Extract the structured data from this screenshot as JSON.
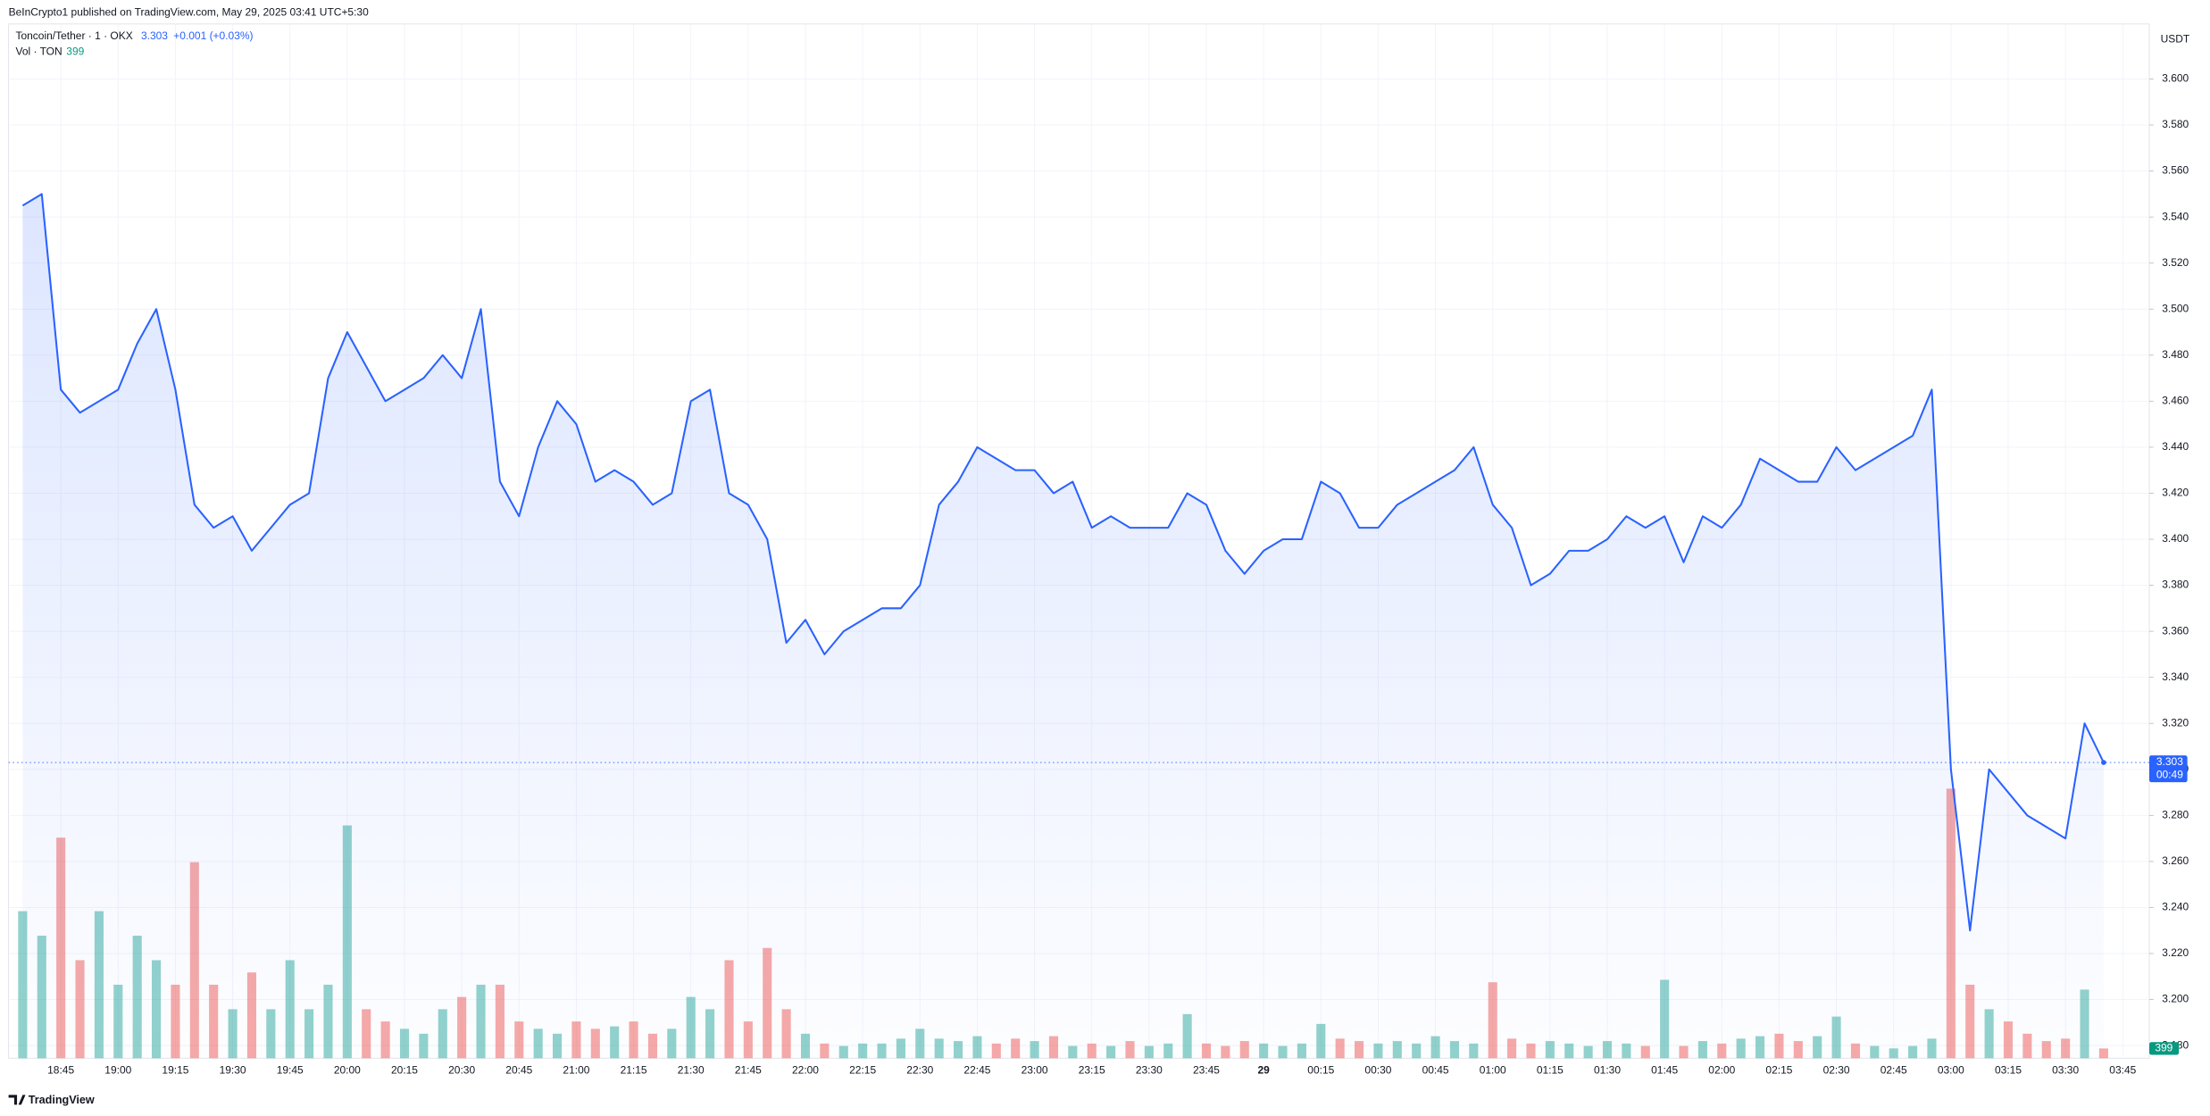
{
  "header": {
    "text": "BeInCrypto1 published on TradingView.com, May 29, 2025 03:41 UTC+5:30"
  },
  "legend": {
    "change": "+0.001 (+0.03%)"
  },
  "footer": {
    "brand": "TradingView"
  },
  "chart_data": {
    "type": "area",
    "y_axis_label": "USDT",
    "countdown": "00:49",
    "grid": true,
    "categories": [
      null,
      null,
      "18:45",
      null,
      null,
      "19:00",
      null,
      null,
      "19:15",
      null,
      null,
      "19:30",
      null,
      null,
      "19:45",
      null,
      null,
      "20:00",
      null,
      null,
      "20:15",
      null,
      null,
      "20:30",
      null,
      null,
      "20:45",
      null,
      null,
      "21:00",
      null,
      null,
      "21:15",
      null,
      null,
      "21:30",
      null,
      null,
      "21:45",
      null,
      null,
      "22:00",
      null,
      null,
      "22:15",
      null,
      null,
      "22:30",
      null,
      null,
      "22:45",
      null,
      null,
      "23:00",
      null,
      null,
      "23:15",
      null,
      null,
      "23:30",
      null,
      null,
      "23:45",
      null,
      null,
      "29",
      null,
      null,
      "00:15",
      null,
      null,
      "00:30",
      null,
      null,
      "00:45",
      null,
      null,
      "01:00",
      null,
      null,
      "01:15",
      null,
      null,
      "01:30",
      null,
      null,
      "01:45",
      null,
      null,
      "02:00",
      null,
      null,
      "02:15",
      null,
      null,
      "02:30",
      null,
      null,
      "02:45",
      null,
      null,
      "03:00",
      null,
      null,
      "03:15",
      null,
      null,
      "03:30",
      null,
      null,
      "03:45"
    ],
    "series": [
      {
        "name": "Toncoin/Tether · 1 · OKX",
        "color": "#2962ff",
        "values": [
          3.545,
          3.55,
          3.465,
          3.455,
          3.46,
          3.465,
          3.485,
          3.5,
          3.465,
          3.415,
          3.405,
          3.41,
          3.395,
          3.405,
          3.415,
          3.42,
          3.47,
          3.49,
          3.475,
          3.46,
          3.465,
          3.47,
          3.48,
          3.47,
          3.5,
          3.425,
          3.41,
          3.44,
          3.46,
          3.45,
          3.425,
          3.43,
          3.425,
          3.415,
          3.42,
          3.46,
          3.465,
          3.42,
          3.415,
          3.4,
          3.355,
          3.365,
          3.35,
          3.36,
          3.365,
          3.37,
          3.37,
          3.38,
          3.415,
          3.425,
          3.44,
          3.435,
          3.43,
          3.43,
          3.42,
          3.425,
          3.405,
          3.41,
          3.405,
          3.405,
          3.405,
          3.42,
          3.415,
          3.395,
          3.385,
          3.395,
          3.4,
          3.4,
          3.425,
          3.42,
          3.405,
          3.405,
          3.415,
          3.42,
          3.425,
          3.43,
          3.44,
          3.415,
          3.405,
          3.38,
          3.385,
          3.395,
          3.395,
          3.4,
          3.41,
          3.405,
          3.41,
          3.39,
          3.41,
          3.405,
          3.415,
          3.435,
          3.43,
          3.425,
          3.425,
          3.44,
          3.43,
          3.435,
          3.44,
          3.445,
          3.465,
          3.3,
          3.23,
          3.3,
          3.29,
          3.28,
          3.275,
          3.27,
          3.32,
          3.303,
          null
        ]
      },
      {
        "name": "Vol · TON",
        "color": "#26a69a",
        "down_color": "#ef5350",
        "axis": "y2",
        "values": [
          6000,
          5000,
          9000,
          4000,
          6000,
          3000,
          5000,
          4000,
          3000,
          8000,
          3000,
          2000,
          3500,
          2000,
          4000,
          2000,
          3000,
          9500,
          2000,
          1500,
          1200,
          1000,
          2000,
          2500,
          3000,
          3000,
          1500,
          1200,
          1000,
          1500,
          1200,
          1300,
          1500,
          1000,
          1200,
          2500,
          2000,
          4000,
          1500,
          4500,
          2000,
          1000,
          600,
          500,
          600,
          600,
          800,
          1200,
          800,
          700,
          900,
          600,
          800,
          700,
          900,
          500,
          600,
          500,
          700,
          500,
          600,
          1800,
          600,
          500,
          700,
          600,
          500,
          600,
          1400,
          800,
          700,
          600,
          700,
          600,
          900,
          700,
          600,
          3100,
          800,
          600,
          700,
          600,
          500,
          700,
          600,
          500,
          3200,
          500,
          700,
          600,
          800,
          900,
          1000,
          700,
          900,
          1700,
          600,
          500,
          400,
          500,
          800,
          11000,
          3000,
          2000,
          1500,
          1000,
          700,
          800,
          2800,
          399,
          null
        ]
      }
    ],
    "ylim": [
      3.1745,
      3.6239
    ],
    "y2lim": [
      0,
      42200
    ],
    "yticks": [
      {
        "value": 3.18,
        "label": "3.180"
      },
      {
        "value": 3.2,
        "label": "3.200"
      },
      {
        "value": 3.22,
        "label": "3.220"
      },
      {
        "value": 3.24,
        "label": "3.240"
      },
      {
        "value": 3.26,
        "label": "3.260"
      },
      {
        "value": 3.28,
        "label": "3.280"
      },
      {
        "value": 3.3,
        "label": "3.300"
      },
      {
        "value": 3.32,
        "label": "3.320"
      },
      {
        "value": 3.34,
        "label": "3.340"
      },
      {
        "value": 3.36,
        "label": "3.360"
      },
      {
        "value": 3.38,
        "label": "3.380"
      },
      {
        "value": 3.4,
        "label": "3.400"
      },
      {
        "value": 3.42,
        "label": "3.420"
      },
      {
        "value": 3.44,
        "label": "3.440"
      },
      {
        "value": 3.46,
        "label": "3.460"
      },
      {
        "value": 3.48,
        "label": "3.480"
      },
      {
        "value": 3.5,
        "label": "3.500"
      },
      {
        "value": 3.52,
        "label": "3.520"
      },
      {
        "value": 3.54,
        "label": "3.540"
      },
      {
        "value": 3.56,
        "label": "3.560"
      },
      {
        "value": 3.58,
        "label": "3.580"
      },
      {
        "value": 3.6,
        "label": "3.600"
      }
    ]
  }
}
